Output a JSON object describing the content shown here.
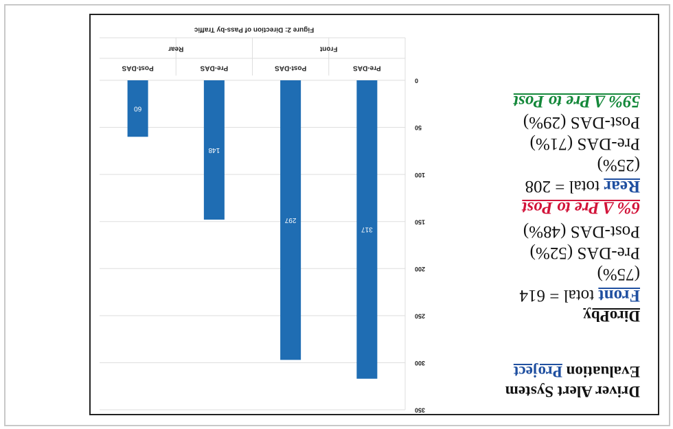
{
  "panel": {
    "title": "Driver Alert System Evaluation",
    "title_highlight": "Project",
    "heading": "DiroPby",
    "front": {
      "name": "Front",
      "total": "total = 614",
      "share": "(75%)",
      "pre": "Pre-DAS (52%)",
      "post": "Post-DAS (48%)",
      "change": "6% Δ Pre to Post"
    },
    "rear": {
      "name": "Rear",
      "total": "total = 208",
      "share": "(25%)",
      "pre": "Pre-DAS (71%)",
      "post": "Post-DAS (29%)",
      "change": "59% Δ Pre to Post"
    }
  },
  "chart_data": {
    "type": "bar",
    "title": "Figure 2: Direction of Pass-by Traffic",
    "categories": [
      "Pre-DAS",
      "Post-DAS",
      "Pre-DAS",
      "Post-DAS"
    ],
    "groups": [
      "Front",
      "Rear"
    ],
    "values": [
      317,
      297,
      148,
      60
    ],
    "color": "#1f6db3",
    "ylim": [
      0,
      350
    ],
    "yticks": [
      0,
      50,
      100,
      150,
      200,
      250,
      300,
      350
    ],
    "grid": true
  }
}
